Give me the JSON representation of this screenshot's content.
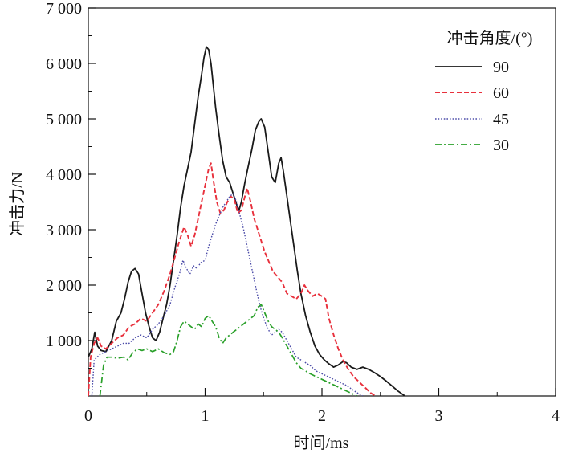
{
  "chart_data": {
    "type": "line",
    "title": "",
    "xlabel": "时间/ms",
    "ylabel": "冲击力/N",
    "xlim": [
      0,
      4
    ],
    "ylim": [
      0,
      7000
    ],
    "grid": false,
    "x_ticks": [
      0,
      1,
      2,
      3,
      4
    ],
    "x_tick_labels": [
      "0",
      "1",
      "2",
      "3",
      "4"
    ],
    "y_ticks": [
      1000,
      2000,
      3000,
      4000,
      5000,
      6000,
      7000
    ],
    "y_tick_labels": [
      "1 000",
      "2 000",
      "3 000",
      "4 000",
      "5 000",
      "6 000",
      "7 000"
    ],
    "legend": {
      "title": "冲击角度/(°)",
      "position": "top-right"
    },
    "series": [
      {
        "name": "90",
        "color": "#1a1a1a",
        "style": "solid",
        "points": [
          [
            0,
            700
          ],
          [
            0.03,
            850
          ],
          [
            0.055,
            1150
          ],
          [
            0.08,
            900
          ],
          [
            0.11,
            820
          ],
          [
            0.15,
            800
          ],
          [
            0.2,
            1000
          ],
          [
            0.24,
            1350
          ],
          [
            0.28,
            1500
          ],
          [
            0.31,
            1750
          ],
          [
            0.34,
            2050
          ],
          [
            0.37,
            2250
          ],
          [
            0.4,
            2300
          ],
          [
            0.43,
            2200
          ],
          [
            0.46,
            1850
          ],
          [
            0.49,
            1500
          ],
          [
            0.52,
            1250
          ],
          [
            0.55,
            1050
          ],
          [
            0.58,
            1000
          ],
          [
            0.61,
            1150
          ],
          [
            0.64,
            1400
          ],
          [
            0.67,
            1650
          ],
          [
            0.7,
            2000
          ],
          [
            0.73,
            2450
          ],
          [
            0.76,
            2900
          ],
          [
            0.79,
            3400
          ],
          [
            0.82,
            3800
          ],
          [
            0.85,
            4100
          ],
          [
            0.88,
            4400
          ],
          [
            0.91,
            4900
          ],
          [
            0.94,
            5400
          ],
          [
            0.97,
            5800
          ],
          [
            0.99,
            6100
          ],
          [
            1.01,
            6300
          ],
          [
            1.03,
            6250
          ],
          [
            1.05,
            6000
          ],
          [
            1.07,
            5600
          ],
          [
            1.09,
            5200
          ],
          [
            1.12,
            4700
          ],
          [
            1.15,
            4250
          ],
          [
            1.18,
            3950
          ],
          [
            1.21,
            3850
          ],
          [
            1.24,
            3650
          ],
          [
            1.27,
            3450
          ],
          [
            1.29,
            3350
          ],
          [
            1.31,
            3500
          ],
          [
            1.34,
            3850
          ],
          [
            1.37,
            4150
          ],
          [
            1.4,
            4450
          ],
          [
            1.43,
            4800
          ],
          [
            1.46,
            4950
          ],
          [
            1.48,
            5000
          ],
          [
            1.51,
            4850
          ],
          [
            1.54,
            4400
          ],
          [
            1.57,
            3950
          ],
          [
            1.6,
            3850
          ],
          [
            1.63,
            4200
          ],
          [
            1.65,
            4300
          ],
          [
            1.67,
            4050
          ],
          [
            1.7,
            3600
          ],
          [
            1.73,
            3150
          ],
          [
            1.76,
            2700
          ],
          [
            1.79,
            2250
          ],
          [
            1.82,
            1850
          ],
          [
            1.86,
            1450
          ],
          [
            1.9,
            1150
          ],
          [
            1.94,
            900
          ],
          [
            1.98,
            750
          ],
          [
            2.02,
            650
          ],
          [
            2.06,
            580
          ],
          [
            2.1,
            520
          ],
          [
            2.14,
            560
          ],
          [
            2.18,
            620
          ],
          [
            2.21,
            600
          ],
          [
            2.25,
            520
          ],
          [
            2.3,
            480
          ],
          [
            2.35,
            520
          ],
          [
            2.4,
            480
          ],
          [
            2.45,
            420
          ],
          [
            2.5,
            350
          ],
          [
            2.55,
            270
          ],
          [
            2.6,
            180
          ],
          [
            2.65,
            90
          ],
          [
            2.71,
            0
          ]
        ]
      },
      {
        "name": "60",
        "color": "#e8303c",
        "style": "dashed",
        "points": [
          [
            0,
            0
          ],
          [
            0.02,
            700
          ],
          [
            0.05,
            950
          ],
          [
            0.08,
            1050
          ],
          [
            0.11,
            900
          ],
          [
            0.15,
            850
          ],
          [
            0.2,
            950
          ],
          [
            0.25,
            1050
          ],
          [
            0.3,
            1100
          ],
          [
            0.35,
            1250
          ],
          [
            0.4,
            1300
          ],
          [
            0.45,
            1400
          ],
          [
            0.5,
            1350
          ],
          [
            0.55,
            1500
          ],
          [
            0.6,
            1650
          ],
          [
            0.65,
            1900
          ],
          [
            0.7,
            2200
          ],
          [
            0.74,
            2500
          ],
          [
            0.78,
            2800
          ],
          [
            0.82,
            3050
          ],
          [
            0.85,
            2900
          ],
          [
            0.88,
            2700
          ],
          [
            0.91,
            2900
          ],
          [
            0.94,
            3200
          ],
          [
            0.97,
            3500
          ],
          [
            1.0,
            3800
          ],
          [
            1.03,
            4100
          ],
          [
            1.05,
            4200
          ],
          [
            1.07,
            3900
          ],
          [
            1.1,
            3500
          ],
          [
            1.13,
            3300
          ],
          [
            1.16,
            3350
          ],
          [
            1.19,
            3500
          ],
          [
            1.22,
            3600
          ],
          [
            1.25,
            3550
          ],
          [
            1.28,
            3300
          ],
          [
            1.31,
            3350
          ],
          [
            1.34,
            3600
          ],
          [
            1.36,
            3750
          ],
          [
            1.39,
            3500
          ],
          [
            1.42,
            3200
          ],
          [
            1.45,
            3000
          ],
          [
            1.48,
            2800
          ],
          [
            1.51,
            2600
          ],
          [
            1.54,
            2450
          ],
          [
            1.58,
            2250
          ],
          [
            1.62,
            2150
          ],
          [
            1.66,
            2050
          ],
          [
            1.7,
            1850
          ],
          [
            1.74,
            1800
          ],
          [
            1.78,
            1750
          ],
          [
            1.82,
            1850
          ],
          [
            1.85,
            2000
          ],
          [
            1.88,
            1900
          ],
          [
            1.92,
            1800
          ],
          [
            1.96,
            1850
          ],
          [
            2.0,
            1800
          ],
          [
            2.03,
            1750
          ],
          [
            2.06,
            1400
          ],
          [
            2.1,
            1100
          ],
          [
            2.14,
            850
          ],
          [
            2.18,
            650
          ],
          [
            2.22,
            500
          ],
          [
            2.27,
            350
          ],
          [
            2.32,
            250
          ],
          [
            2.37,
            150
          ],
          [
            2.42,
            50
          ],
          [
            2.46,
            0
          ]
        ]
      },
      {
        "name": "45",
        "color": "#4b4ba8",
        "style": "dotted",
        "points": [
          [
            0.03,
            0
          ],
          [
            0.05,
            650
          ],
          [
            0.1,
            750
          ],
          [
            0.15,
            800
          ],
          [
            0.2,
            850
          ],
          [
            0.25,
            900
          ],
          [
            0.3,
            950
          ],
          [
            0.35,
            950
          ],
          [
            0.4,
            1050
          ],
          [
            0.45,
            1100
          ],
          [
            0.5,
            1050
          ],
          [
            0.55,
            1200
          ],
          [
            0.6,
            1300
          ],
          [
            0.65,
            1450
          ],
          [
            0.7,
            1650
          ],
          [
            0.74,
            1950
          ],
          [
            0.78,
            2200
          ],
          [
            0.81,
            2450
          ],
          [
            0.84,
            2300
          ],
          [
            0.87,
            2200
          ],
          [
            0.9,
            2350
          ],
          [
            0.93,
            2300
          ],
          [
            0.96,
            2400
          ],
          [
            1.0,
            2450
          ],
          [
            1.03,
            2700
          ],
          [
            1.06,
            2900
          ],
          [
            1.09,
            3100
          ],
          [
            1.12,
            3250
          ],
          [
            1.15,
            3400
          ],
          [
            1.18,
            3500
          ],
          [
            1.21,
            3600
          ],
          [
            1.24,
            3650
          ],
          [
            1.27,
            3500
          ],
          [
            1.3,
            3250
          ],
          [
            1.33,
            3000
          ],
          [
            1.36,
            2700
          ],
          [
            1.39,
            2400
          ],
          [
            1.42,
            2100
          ],
          [
            1.45,
            1800
          ],
          [
            1.48,
            1550
          ],
          [
            1.51,
            1350
          ],
          [
            1.54,
            1200
          ],
          [
            1.57,
            1100
          ],
          [
            1.6,
            1150
          ],
          [
            1.63,
            1200
          ],
          [
            1.66,
            1150
          ],
          [
            1.7,
            1000
          ],
          [
            1.74,
            850
          ],
          [
            1.78,
            700
          ],
          [
            1.82,
            650
          ],
          [
            1.86,
            600
          ],
          [
            1.9,
            550
          ],
          [
            1.95,
            450
          ],
          [
            2.0,
            400
          ],
          [
            2.05,
            350
          ],
          [
            2.1,
            300
          ],
          [
            2.15,
            250
          ],
          [
            2.2,
            200
          ],
          [
            2.25,
            130
          ],
          [
            2.3,
            60
          ],
          [
            2.35,
            0
          ]
        ]
      },
      {
        "name": "30",
        "color": "#2aa02a",
        "style": "dash-dot",
        "points": [
          [
            0.1,
            0
          ],
          [
            0.13,
            550
          ],
          [
            0.16,
            700
          ],
          [
            0.2,
            700
          ],
          [
            0.25,
            680
          ],
          [
            0.3,
            700
          ],
          [
            0.34,
            650
          ],
          [
            0.38,
            780
          ],
          [
            0.42,
            850
          ],
          [
            0.46,
            820
          ],
          [
            0.5,
            850
          ],
          [
            0.55,
            800
          ],
          [
            0.6,
            850
          ],
          [
            0.65,
            780
          ],
          [
            0.7,
            750
          ],
          [
            0.73,
            800
          ],
          [
            0.76,
            1000
          ],
          [
            0.79,
            1250
          ],
          [
            0.82,
            1350
          ],
          [
            0.85,
            1300
          ],
          [
            0.88,
            1250
          ],
          [
            0.91,
            1200
          ],
          [
            0.94,
            1300
          ],
          [
            0.97,
            1250
          ],
          [
            1.0,
            1400
          ],
          [
            1.03,
            1450
          ],
          [
            1.06,
            1350
          ],
          [
            1.09,
            1250
          ],
          [
            1.12,
            1050
          ],
          [
            1.15,
            950
          ],
          [
            1.18,
            1050
          ],
          [
            1.21,
            1100
          ],
          [
            1.24,
            1150
          ],
          [
            1.27,
            1200
          ],
          [
            1.3,
            1250
          ],
          [
            1.33,
            1300
          ],
          [
            1.36,
            1350
          ],
          [
            1.39,
            1400
          ],
          [
            1.42,
            1450
          ],
          [
            1.45,
            1600
          ],
          [
            1.48,
            1650
          ],
          [
            1.51,
            1500
          ],
          [
            1.54,
            1350
          ],
          [
            1.57,
            1250
          ],
          [
            1.6,
            1200
          ],
          [
            1.63,
            1150
          ],
          [
            1.66,
            1050
          ],
          [
            1.7,
            900
          ],
          [
            1.74,
            750
          ],
          [
            1.78,
            600
          ],
          [
            1.82,
            500
          ],
          [
            1.86,
            450
          ],
          [
            1.9,
            400
          ],
          [
            1.95,
            350
          ],
          [
            2.0,
            300
          ],
          [
            2.05,
            250
          ],
          [
            2.1,
            200
          ],
          [
            2.15,
            150
          ],
          [
            2.2,
            100
          ],
          [
            2.25,
            50
          ],
          [
            2.3,
            0
          ]
        ]
      }
    ]
  }
}
